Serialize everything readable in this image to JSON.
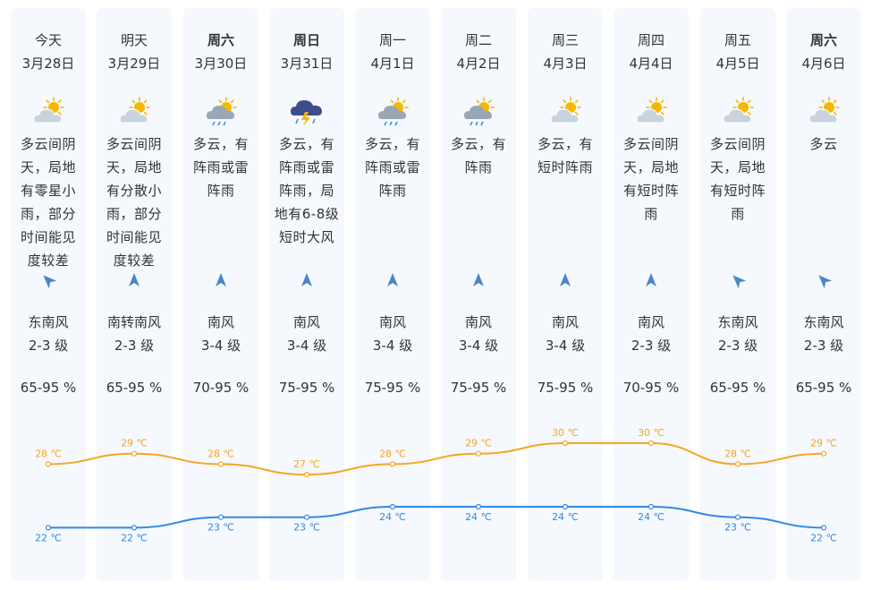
{
  "days": [
    {
      "weekday": "今天",
      "date": "3月28日",
      "bold": false,
      "icon": "partly-cloudy-icon",
      "desc": "多云间阴天，局地有零星小雨，部分时间能见度较差",
      "wind_arrow": "arrow-northwest-icon",
      "wind_dir": "东南风",
      "wind_level": "2-3 级",
      "humidity": "65-95 %"
    },
    {
      "weekday": "明天",
      "date": "3月29日",
      "bold": false,
      "icon": "partly-cloudy-icon",
      "desc": "多云间阴天，局地有分散小雨，部分时间能见度较差",
      "wind_arrow": "arrow-north-icon",
      "wind_dir": "南转南风",
      "wind_level": "2-3 级",
      "humidity": "65-95 %"
    },
    {
      "weekday": "周六",
      "date": "3月30日",
      "bold": true,
      "icon": "showers-icon",
      "desc": "多云，有阵雨或雷阵雨",
      "wind_arrow": "arrow-north-icon",
      "wind_dir": "南风",
      "wind_level": "3-4 级",
      "humidity": "70-95 %"
    },
    {
      "weekday": "周日",
      "date": "3月31日",
      "bold": true,
      "icon": "thunderstorm-icon",
      "desc": "多云，有阵雨或雷阵雨，局地有6-8级短时大风",
      "wind_arrow": "arrow-north-icon",
      "wind_dir": "南风",
      "wind_level": "3-4 级",
      "humidity": "75-95 %"
    },
    {
      "weekday": "周一",
      "date": "4月1日",
      "bold": false,
      "icon": "showers-icon",
      "desc": "多云，有阵雨或雷阵雨",
      "wind_arrow": "arrow-north-icon",
      "wind_dir": "南风",
      "wind_level": "3-4 级",
      "humidity": "75-95 %"
    },
    {
      "weekday": "周二",
      "date": "4月2日",
      "bold": false,
      "icon": "showers-icon",
      "desc": "多云，有阵雨",
      "wind_arrow": "arrow-north-icon",
      "wind_dir": "南风",
      "wind_level": "3-4 级",
      "humidity": "75-95 %"
    },
    {
      "weekday": "周三",
      "date": "4月3日",
      "bold": false,
      "icon": "partly-cloudy-icon",
      "desc": "多云，有短时阵雨",
      "wind_arrow": "arrow-north-icon",
      "wind_dir": "南风",
      "wind_level": "3-4 级",
      "humidity": "75-95 %"
    },
    {
      "weekday": "周四",
      "date": "4月4日",
      "bold": false,
      "icon": "partly-cloudy-icon",
      "desc": "多云间阴天，局地有短时阵雨",
      "wind_arrow": "arrow-north-icon",
      "wind_dir": "南风",
      "wind_level": "2-3 级",
      "humidity": "70-95 %"
    },
    {
      "weekday": "周五",
      "date": "4月5日",
      "bold": false,
      "icon": "partly-cloudy-icon",
      "desc": "多云间阴天，局地有短时阵雨",
      "wind_arrow": "arrow-northwest-icon",
      "wind_dir": "东南风",
      "wind_level": "2-3 级",
      "humidity": "65-95 %"
    },
    {
      "weekday": "周六",
      "date": "4月6日",
      "bold": true,
      "icon": "partly-cloudy-icon",
      "desc": "多云",
      "wind_arrow": "arrow-northwest-icon",
      "wind_dir": "东南风",
      "wind_level": "2-3 级",
      "humidity": "65-95 %"
    }
  ],
  "temperature": {
    "high": [
      28,
      29,
      28,
      27,
      28,
      29,
      30,
      30,
      28,
      29
    ],
    "low": [
      22,
      22,
      23,
      23,
      24,
      24,
      24,
      24,
      23,
      22
    ],
    "unit": "℃",
    "high_color": "#f5a623",
    "low_color": "#2f8ae5"
  },
  "colors": {
    "column_bg": "#f5f8fd",
    "text": "#333333",
    "arrow": "#4a86c5",
    "sun": "#f5b800",
    "cloud": "#c9d3de",
    "storm_cloud": "#3d4d8c"
  }
}
